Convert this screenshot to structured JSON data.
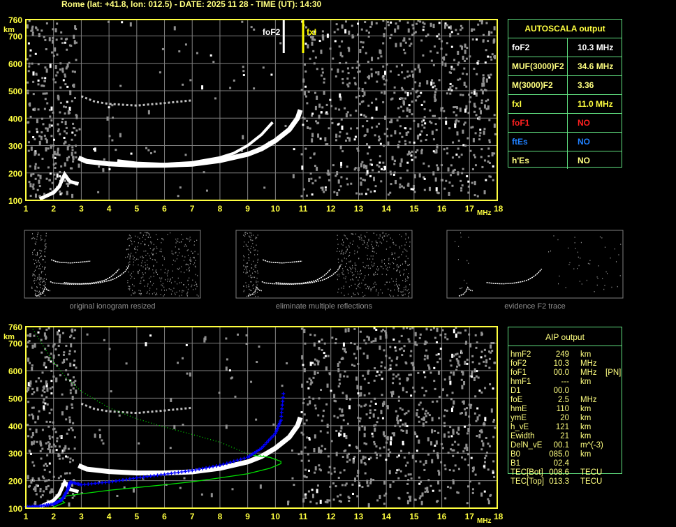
{
  "header": {
    "title": "Rome (lat: +41.8, lon: 012.5) - DATE: 2025 11 28 - TIME (UT): 14:30"
  },
  "autoscala": {
    "title": "AUTOSCALA output",
    "rows": [
      {
        "key": "foF2",
        "value": "10.3 MHz",
        "color": "#ffffff"
      },
      {
        "key": "MUF(3000)F2",
        "value": "34.6 MHz",
        "color": "#ffff80"
      },
      {
        "key": "M(3000)F2",
        "value": "3.36",
        "color": "#ffff80"
      },
      {
        "key": "fxI",
        "value": "11.0 MHz",
        "color": "#ffff40"
      },
      {
        "key": "foF1",
        "value": "NO",
        "color": "#ff2020"
      },
      {
        "key": "ftEs",
        "value": "NO",
        "color": "#2080ff"
      },
      {
        "key": "h'Es",
        "value": "NO",
        "color": "#ffff80"
      }
    ]
  },
  "aip": {
    "title": "AIP output",
    "rows": [
      {
        "k": "hmF2",
        "v": "249",
        "u": "km",
        "x": ""
      },
      {
        "k": "foF2",
        "v": "10.3",
        "u": "MHz",
        "x": ""
      },
      {
        "k": "foF1",
        "v": "00.0",
        "u": "MHz",
        "x": "[PN]"
      },
      {
        "k": "hmF1",
        "v": "---",
        "u": "km",
        "x": ""
      },
      {
        "k": "D1",
        "v": "00.0",
        "u": "",
        "x": ""
      },
      {
        "k": "foE",
        "v": "2.5",
        "u": "MHz",
        "x": ""
      },
      {
        "k": "hmE",
        "v": "110",
        "u": "km",
        "x": ""
      },
      {
        "k": "ymE",
        "v": "20",
        "u": "km",
        "x": ""
      },
      {
        "k": "h_vE",
        "v": "121",
        "u": "km",
        "x": ""
      },
      {
        "k": "Ewidth",
        "v": "21",
        "u": "km",
        "x": ""
      },
      {
        "k": "DelN_vE",
        "v": "00.1",
        "u": "m^(-3)",
        "x": ""
      },
      {
        "k": "B0",
        "v": "085.0",
        "u": "km",
        "x": ""
      },
      {
        "k": "B1",
        "v": "02.4",
        "u": "",
        "x": ""
      },
      {
        "k": "TEC[Bot]",
        "v": "008.6",
        "u": "TECU",
        "x": ""
      },
      {
        "k": "TEC[Top]",
        "v": "013.3",
        "u": "TECU",
        "x": ""
      }
    ]
  },
  "thumbnails": [
    "original ionogram resized",
    "eliminate multiple reflections",
    "evidence F2 trace"
  ],
  "colors": {
    "axis": "#ffff40",
    "grid": "#808080",
    "trace": "#ffffff",
    "noise": "#909090",
    "profile": "#00e000",
    "fit": "#0000ff",
    "table_border": "#60e080"
  },
  "chart_data": [
    {
      "type": "scatter",
      "title": "",
      "xlabel": "MHz",
      "ylabel": "km",
      "xlim": [
        1,
        18
      ],
      "ylim": [
        100,
        760
      ],
      "xticks": [
        1,
        2,
        3,
        4,
        5,
        6,
        7,
        8,
        9,
        10,
        11,
        12,
        13,
        14,
        15,
        16,
        17,
        18
      ],
      "yticks": [
        100,
        200,
        300,
        400,
        500,
        600,
        700,
        760
      ],
      "grid": true,
      "markers": [
        {
          "label": "foF2",
          "x": 10.3
        },
        {
          "label": "fxI",
          "x": 11.0
        }
      ],
      "traces": {
        "F2_o": [
          [
            2.9,
            255
          ],
          [
            3.2,
            242
          ],
          [
            4,
            233
          ],
          [
            5,
            228
          ],
          [
            6,
            228
          ],
          [
            7,
            232
          ],
          [
            8,
            245
          ],
          [
            9,
            268
          ],
          [
            9.5,
            288
          ],
          [
            10,
            318
          ],
          [
            10.5,
            358
          ],
          [
            10.8,
            400
          ],
          [
            10.9,
            430
          ]
        ],
        "F2_x": [
          [
            4.3,
            245
          ],
          [
            5,
            236
          ],
          [
            6,
            232
          ],
          [
            7,
            238
          ],
          [
            8,
            256
          ],
          [
            8.5,
            272
          ],
          [
            9,
            300
          ],
          [
            9.5,
            340
          ],
          [
            9.9,
            385
          ]
        ],
        "E": [
          [
            1.5,
            105
          ],
          [
            2,
            128
          ],
          [
            2.2,
            150
          ],
          [
            2.4,
            195
          ],
          [
            2.5,
            180
          ],
          [
            2.6,
            168
          ],
          [
            2.9,
            160
          ]
        ],
        "multiple": [
          [
            3,
            480
          ],
          [
            3.5,
            460
          ],
          [
            4,
            452
          ],
          [
            5,
            446
          ],
          [
            6,
            455
          ],
          [
            7,
            465
          ]
        ]
      }
    },
    {
      "type": "line",
      "title": "",
      "xlabel": "MHz",
      "ylabel": "km",
      "xlim": [
        1,
        18
      ],
      "ylim": [
        100,
        760
      ],
      "xticks": [
        1,
        2,
        3,
        4,
        5,
        6,
        7,
        8,
        9,
        10,
        11,
        12,
        13,
        14,
        15,
        16,
        17,
        18
      ],
      "yticks": [
        100,
        200,
        300,
        400,
        500,
        600,
        700,
        760
      ],
      "grid": true,
      "series": [
        {
          "style": "solid-green",
          "points": [
            [
              1.9,
              100
            ],
            [
              2.2,
              112
            ],
            [
              2.4,
              120
            ],
            [
              2.2,
              135
            ],
            [
              2.5,
              145
            ],
            [
              3,
              152
            ],
            [
              4,
              165
            ],
            [
              5,
              175
            ],
            [
              6,
              185
            ],
            [
              7,
              196
            ],
            [
              8,
              210
            ],
            [
              9,
              225
            ],
            [
              9.8,
              245
            ],
            [
              10.2,
              262
            ],
            [
              10.2,
              270
            ],
            [
              9.8,
              285
            ],
            [
              9.2,
              292
            ]
          ]
        },
        {
          "style": "dotted-green",
          "points": [
            [
              1.2,
              760
            ],
            [
              1.5,
              710
            ],
            [
              2,
              630
            ],
            [
              2.5,
              570
            ],
            [
              3,
              525
            ],
            [
              3.5,
              495
            ],
            [
              4,
              465
            ],
            [
              5,
              425
            ],
            [
              6,
              395
            ],
            [
              7,
              368
            ],
            [
              8,
              340
            ],
            [
              9,
              298
            ],
            [
              9.6,
              290
            ],
            [
              10.2,
              270
            ]
          ]
        },
        {
          "style": "blue-fit",
          "points": [
            [
              1,
              105
            ],
            [
              1.5,
              107
            ],
            [
              2,
              115
            ],
            [
              2.3,
              130
            ],
            [
              2.5,
              165
            ],
            [
              2.6,
              195
            ],
            [
              3,
              185
            ],
            [
              4,
              195
            ],
            [
              5,
              210
            ],
            [
              6,
              223
            ],
            [
              7,
              237
            ],
            [
              8,
              256
            ],
            [
              9,
              285
            ],
            [
              9.5,
              318
            ],
            [
              10,
              372
            ],
            [
              10.2,
              420
            ],
            [
              10.3,
              530
            ]
          ]
        }
      ],
      "traces": {
        "F2_o": [
          [
            2.9,
            255
          ],
          [
            3.2,
            242
          ],
          [
            4,
            233
          ],
          [
            5,
            228
          ],
          [
            6,
            228
          ],
          [
            7,
            232
          ],
          [
            8,
            245
          ],
          [
            9,
            268
          ],
          [
            9.5,
            288
          ],
          [
            10,
            318
          ],
          [
            10.5,
            358
          ],
          [
            10.8,
            400
          ],
          [
            10.9,
            430
          ]
        ],
        "E": [
          [
            1.5,
            105
          ],
          [
            2,
            128
          ],
          [
            2.2,
            150
          ],
          [
            2.4,
            195
          ],
          [
            2.5,
            180
          ],
          [
            2.6,
            168
          ],
          [
            2.9,
            160
          ]
        ],
        "multiple": [
          [
            3,
            480
          ],
          [
            3.5,
            460
          ],
          [
            4,
            452
          ],
          [
            5,
            446
          ],
          [
            6,
            455
          ],
          [
            7,
            465
          ]
        ]
      }
    }
  ]
}
